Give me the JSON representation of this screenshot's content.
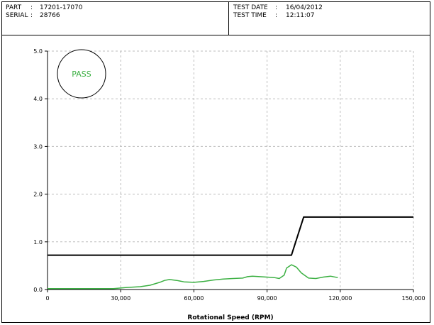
{
  "header": {
    "part_label": "PART",
    "part_value": "17201-17070",
    "serial_label": "SERIAL",
    "serial_value": "28766",
    "date_label": "TEST DATE",
    "date_value": "16/04/2012",
    "time_label": "TEST TIME",
    "time_value": "12:11:07",
    "separator": ":"
  },
  "stamp": {
    "text": "PASS",
    "color": "#3cb043"
  },
  "chart_data": {
    "type": "line",
    "title": "",
    "xlabel": "Rotational Speed (RPM)",
    "ylabel": "",
    "xlim": [
      0,
      150000
    ],
    "ylim": [
      0,
      5.0
    ],
    "xticks": [
      0,
      30000,
      60000,
      90000,
      120000,
      150000
    ],
    "xtick_labels": [
      "0",
      "30,000",
      "60,000",
      "90,000",
      "120,000",
      "150,000"
    ],
    "yticks": [
      0,
      1,
      2,
      3,
      4,
      5
    ],
    "ytick_labels": [
      "0.0",
      "1.0",
      "2.0",
      "3.0",
      "4.0",
      "5.0"
    ],
    "grid": true,
    "series": [
      {
        "color": "#000000",
        "x": [
          0,
          100000,
          105000,
          150000
        ],
        "y": [
          0.72,
          0.72,
          1.52,
          1.52
        ]
      },
      {
        "color": "#3cb043",
        "x": [
          0,
          10000,
          20000,
          27000,
          32000,
          38000,
          42000,
          46000,
          48000,
          50000,
          53000,
          56000,
          60000,
          64000,
          68000,
          72000,
          76000,
          80000,
          82000,
          84000,
          87000,
          90000,
          93000,
          95000,
          97000,
          98000,
          100000,
          102000,
          104000,
          107000,
          110000,
          113000,
          116000,
          119000
        ],
        "y": [
          0.02,
          0.02,
          0.02,
          0.02,
          0.04,
          0.06,
          0.09,
          0.15,
          0.19,
          0.21,
          0.19,
          0.16,
          0.15,
          0.17,
          0.2,
          0.22,
          0.23,
          0.24,
          0.27,
          0.28,
          0.27,
          0.26,
          0.25,
          0.23,
          0.3,
          0.45,
          0.52,
          0.47,
          0.35,
          0.24,
          0.23,
          0.26,
          0.28,
          0.25
        ]
      }
    ]
  }
}
